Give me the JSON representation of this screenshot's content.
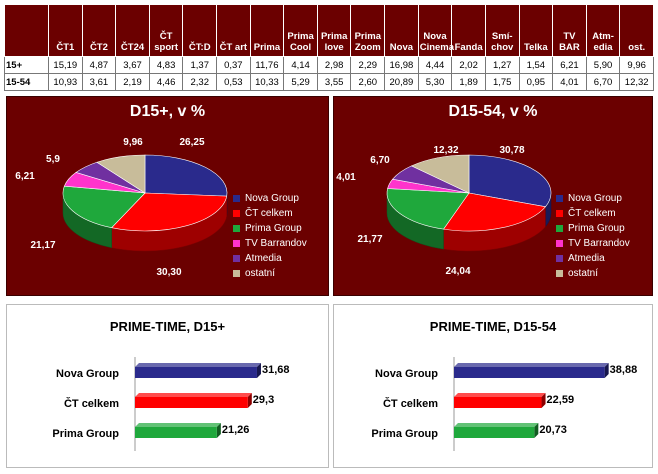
{
  "table": {
    "columns": [
      "ČT1",
      "ČT2",
      "ČT24",
      "ČT sport",
      "ČT:D",
      "ČT art",
      "Prima",
      "Prima Cool",
      "Prima love",
      "Prima Zoom",
      "Nova",
      "Nova Cinema",
      "Fanda",
      "Smí-chov",
      "Telka",
      "TV BAR",
      "Atm-edia",
      "ost."
    ],
    "rows": [
      {
        "label": "15+",
        "values": [
          "15,19",
          "4,87",
          "3,67",
          "4,83",
          "1,37",
          "0,37",
          "11,76",
          "4,14",
          "2,98",
          "2,29",
          "16,98",
          "4,44",
          "2,02",
          "1,27",
          "1,54",
          "6,21",
          "5,90",
          "9,96"
        ]
      },
      {
        "label": "15-54",
        "values": [
          "10,93",
          "3,61",
          "2,19",
          "4,46",
          "2,32",
          "0,53",
          "10,33",
          "5,29",
          "3,55",
          "2,60",
          "20,89",
          "5,30",
          "1,89",
          "1,75",
          "0,95",
          "4,01",
          "6,70",
          "12,32"
        ]
      }
    ]
  },
  "legend": {
    "items": [
      "Nova Group",
      "ČT celkem",
      "Prima Group",
      "TV Barrandov",
      "Atmedia",
      "ostatní"
    ],
    "colors": [
      "#2a2a8c",
      "#ff0000",
      "#1fa83c",
      "#ff33cc",
      "#7030a0",
      "#c8bc9a"
    ]
  },
  "chart_data": [
    {
      "type": "pie",
      "title": "D15+, v %",
      "labels": [
        "Nova Group",
        "ČT celkem",
        "Prima Group",
        "TV Barrandov",
        "Atmedia",
        "ostatní"
      ],
      "values": [
        26.25,
        30.3,
        21.17,
        6.21,
        5.9,
        9.96
      ],
      "value_labels": [
        "26,25",
        "30,30",
        "21,17",
        "6,21",
        "5,9",
        "9,96"
      ],
      "legend_position": "right"
    },
    {
      "type": "pie",
      "title": "D15-54, v %",
      "labels": [
        "Nova Group",
        "ČT celkem",
        "Prima Group",
        "TV Barrandov",
        "Atmedia",
        "ostatní"
      ],
      "values": [
        30.78,
        24.04,
        21.77,
        4.01,
        6.7,
        12.32
      ],
      "value_labels": [
        "30,78",
        "24,04",
        "21,77",
        "4,01",
        "6,70",
        "12,32"
      ],
      "legend_position": "right"
    },
    {
      "type": "bar",
      "orientation": "horizontal",
      "title": "PRIME-TIME, D15+",
      "categories": [
        "Nova Group",
        "ČT celkem",
        "Prima Group"
      ],
      "values": [
        31.68,
        29.3,
        21.26
      ],
      "value_labels": [
        "31,68",
        "29,3",
        "21,26"
      ],
      "colors": [
        "#2a2a8c",
        "#ff0000",
        "#1fa83c"
      ],
      "xlim": [
        0,
        40
      ]
    },
    {
      "type": "bar",
      "orientation": "horizontal",
      "title": "PRIME-TIME, D15-54",
      "categories": [
        "Nova Group",
        "ČT celkem",
        "Prima Group"
      ],
      "values": [
        38.88,
        22.59,
        20.73
      ],
      "value_labels": [
        "38,88",
        "22,59",
        "20,73"
      ],
      "colors": [
        "#2a2a8c",
        "#ff0000",
        "#1fa83c"
      ],
      "xlim": [
        0,
        40
      ]
    }
  ]
}
